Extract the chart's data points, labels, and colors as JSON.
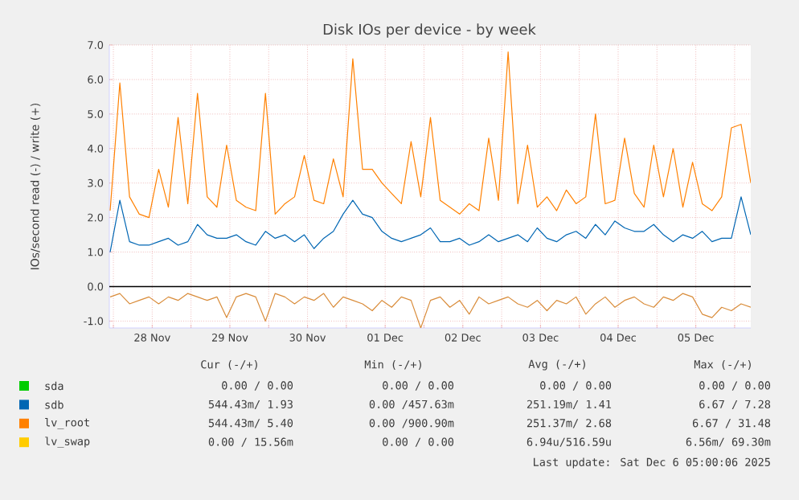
{
  "chart_data": {
    "type": "line",
    "title": "Disk IOs per device - by week",
    "ylabel": "IOs/second read (-) / write (+)",
    "x": [
      "2025-11-27T23:00",
      "2025-11-28T02:00",
      "2025-11-28T05:00",
      "2025-11-28T08:00",
      "2025-11-28T11:00",
      "2025-11-28T14:00",
      "2025-11-28T17:00",
      "2025-11-28T20:00",
      "2025-11-28T23:00",
      "2025-11-29T02:00",
      "2025-11-29T05:00",
      "2025-11-29T08:00",
      "2025-11-29T11:00",
      "2025-11-29T14:00",
      "2025-11-29T17:00",
      "2025-11-29T20:00",
      "2025-11-29T23:00",
      "2025-11-30T02:00",
      "2025-11-30T05:00",
      "2025-11-30T08:00",
      "2025-11-30T11:00",
      "2025-11-30T14:00",
      "2025-11-30T17:00",
      "2025-11-30T20:00",
      "2025-11-30T23:00",
      "2025-12-01T02:00",
      "2025-12-01T05:00",
      "2025-12-01T08:00",
      "2025-12-01T11:00",
      "2025-12-01T14:00",
      "2025-12-01T17:00",
      "2025-12-01T20:00",
      "2025-12-01T23:00",
      "2025-12-02T02:00",
      "2025-12-02T05:00",
      "2025-12-02T08:00",
      "2025-12-02T11:00",
      "2025-12-02T14:00",
      "2025-12-02T17:00",
      "2025-12-02T20:00",
      "2025-12-02T23:00",
      "2025-12-03T02:00",
      "2025-12-03T05:00",
      "2025-12-03T08:00",
      "2025-12-03T11:00",
      "2025-12-03T14:00",
      "2025-12-03T17:00",
      "2025-12-03T20:00",
      "2025-12-03T23:00",
      "2025-12-04T02:00",
      "2025-12-04T05:00",
      "2025-12-04T08:00",
      "2025-12-04T11:00",
      "2025-12-04T14:00",
      "2025-12-04T17:00",
      "2025-12-04T20:00",
      "2025-12-04T23:00",
      "2025-12-05T02:00",
      "2025-12-05T05:00",
      "2025-12-05T08:00",
      "2025-12-05T11:00",
      "2025-12-05T14:00",
      "2025-12-05T17:00",
      "2025-12-05T20:00",
      "2025-12-05T23:00",
      "2025-12-06T02:00",
      "2025-12-06T05:00"
    ],
    "series": [
      {
        "name": "sda",
        "color": "#00cc00",
        "values": [
          null,
          null,
          null,
          null,
          null,
          null,
          null,
          null,
          null,
          null,
          null,
          null,
          null,
          null,
          null,
          null,
          null,
          null,
          null,
          null,
          null,
          null,
          null,
          null,
          null,
          null,
          null,
          null,
          null,
          null,
          null,
          null,
          null,
          null,
          null,
          null,
          null,
          null,
          null,
          null,
          null,
          null,
          null,
          null,
          null,
          null,
          null,
          null,
          null,
          null,
          null,
          null,
          null,
          null,
          null,
          null,
          null,
          null,
          null,
          null,
          null,
          null,
          null,
          null,
          null,
          null,
          null
        ]
      },
      {
        "name": "sdb",
        "color": "#0066b3",
        "values": [
          1.0,
          2.5,
          1.3,
          1.2,
          1.2,
          1.3,
          1.4,
          1.2,
          1.3,
          1.8,
          1.5,
          1.4,
          1.4,
          1.5,
          1.3,
          1.2,
          1.6,
          1.4,
          1.5,
          1.3,
          1.5,
          1.1,
          1.4,
          1.6,
          2.1,
          2.5,
          2.1,
          2.0,
          1.6,
          1.4,
          1.3,
          1.4,
          1.5,
          1.7,
          1.3,
          1.3,
          1.4,
          1.2,
          1.3,
          1.5,
          1.3,
          1.4,
          1.5,
          1.3,
          1.7,
          1.4,
          1.3,
          1.5,
          1.6,
          1.4,
          1.8,
          1.5,
          1.9,
          1.7,
          1.6,
          1.6,
          1.8,
          1.5,
          1.3,
          1.5,
          1.4,
          1.6,
          1.3,
          1.4,
          1.4,
          2.6,
          1.5
        ]
      },
      {
        "name": "lv_root",
        "color": "#ff8000",
        "values": [
          2.2,
          5.9,
          2.6,
          2.1,
          2.0,
          3.4,
          2.3,
          4.9,
          2.4,
          5.6,
          2.6,
          2.3,
          4.1,
          2.5,
          2.3,
          2.2,
          5.6,
          2.1,
          2.4,
          2.6,
          3.8,
          2.5,
          2.4,
          3.7,
          2.6,
          6.6,
          3.4,
          3.4,
          3.0,
          2.7,
          2.4,
          4.2,
          2.6,
          4.9,
          2.5,
          2.3,
          2.1,
          2.4,
          2.2,
          4.3,
          2.5,
          6.8,
          2.4,
          4.1,
          2.3,
          2.6,
          2.2,
          2.8,
          2.4,
          2.6,
          5.0,
          2.4,
          2.5,
          4.3,
          2.7,
          2.3,
          4.1,
          2.6,
          4.0,
          2.3,
          3.6,
          2.4,
          2.2,
          2.6,
          4.6,
          4.7,
          3.0
        ]
      },
      {
        "color": "#d98c3a",
        "values": [
          -0.3,
          -0.2,
          -0.5,
          -0.4,
          -0.3,
          -0.5,
          -0.3,
          -0.4,
          -0.2,
          -0.3,
          -0.4,
          -0.3,
          -0.9,
          -0.3,
          -0.2,
          -0.3,
          -1.0,
          -0.2,
          -0.3,
          -0.5,
          -0.3,
          -0.4,
          -0.2,
          -0.6,
          -0.3,
          -0.4,
          -0.5,
          -0.7,
          -0.4,
          -0.6,
          -0.3,
          -0.4,
          -1.2,
          -0.4,
          -0.3,
          -0.6,
          -0.4,
          -0.8,
          -0.3,
          -0.5,
          -0.4,
          -0.3,
          -0.5,
          -0.6,
          -0.4,
          -0.7,
          -0.4,
          -0.5,
          -0.3,
          -0.8,
          -0.5,
          -0.3,
          -0.6,
          -0.4,
          -0.3,
          -0.5,
          -0.6,
          -0.3,
          -0.4,
          -0.2,
          -0.3,
          -0.8,
          -0.9,
          -0.6,
          -0.7,
          -0.5,
          -0.6
        ]
      },
      {
        "name": "lv_swap",
        "color": "#ffcc00",
        "values": [
          null,
          null,
          null,
          null,
          null,
          null,
          null,
          null,
          null,
          null,
          null,
          null,
          null,
          null,
          null,
          null,
          null,
          null,
          null,
          null,
          null,
          null,
          null,
          null,
          null,
          null,
          null,
          null,
          null,
          null,
          null,
          null,
          null,
          null,
          null,
          null,
          null,
          null,
          null,
          null,
          null,
          null,
          null,
          null,
          null,
          null,
          null,
          null,
          null,
          null,
          null,
          null,
          null,
          null,
          null,
          null,
          null,
          null,
          null,
          null,
          null,
          null,
          null,
          null,
          null,
          null,
          null
        ]
      }
    ],
    "xlim": [
      "2025-11-27T22:45",
      "2025-12-06T05:00"
    ],
    "xticks": [
      {
        "value": "2025-11-28T00:00",
        "label": null
      },
      {
        "value": "2025-11-28T12:00",
        "label": "28 Nov"
      },
      {
        "value": "2025-11-29T00:00",
        "label": null
      },
      {
        "value": "2025-11-29T12:00",
        "label": "29 Nov"
      },
      {
        "value": "2025-11-30T00:00",
        "label": null
      },
      {
        "value": "2025-11-30T12:00",
        "label": "30 Nov"
      },
      {
        "value": "2025-12-01T00:00",
        "label": null
      },
      {
        "value": "2025-12-01T12:00",
        "label": "01 Dec"
      },
      {
        "value": "2025-12-02T00:00",
        "label": null
      },
      {
        "value": "2025-12-02T12:00",
        "label": "02 Dec"
      },
      {
        "value": "2025-12-03T00:00",
        "label": null
      },
      {
        "value": "2025-12-03T12:00",
        "label": "03 Dec"
      },
      {
        "value": "2025-12-04T00:00",
        "label": null
      },
      {
        "value": "2025-12-04T12:00",
        "label": "04 Dec"
      },
      {
        "value": "2025-12-05T00:00",
        "label": null
      },
      {
        "value": "2025-12-05T12:00",
        "label": "05 Dec"
      },
      {
        "value": "2025-12-06T00:00",
        "label": null
      }
    ],
    "ylim": [
      -1.2,
      7.0
    ],
    "yticks": [
      {
        "value": -1,
        "label": "-1.0"
      },
      {
        "value": 0,
        "label": "0.0"
      },
      {
        "value": 1,
        "label": "1.0"
      },
      {
        "value": 2,
        "label": "2.0"
      },
      {
        "value": 3,
        "label": "3.0"
      },
      {
        "value": 4,
        "label": "4.0"
      },
      {
        "value": 5,
        "label": "5.0"
      },
      {
        "value": 6,
        "label": "6.0"
      },
      {
        "value": 7,
        "label": "7.0"
      }
    ],
    "grid": true,
    "legend": "bottom",
    "ref_lines": [
      {
        "axis": "y",
        "value": 0,
        "color": "#000000"
      }
    ],
    "annotations": [
      "Cur (-/+)",
      "Min (-/+)",
      "Avg (-/+)",
      "Max (-/+)",
      "0.00 /  0.00",
      "0.00 /  0.00",
      "0.00 /  0.00",
      "0.00 /  0.00",
      "544.43m/  1.93",
      "0.00 /457.63m",
      "251.19m/  1.41",
      "6.67 /  7.28",
      "544.43m/  5.40",
      "0.00 /900.90m",
      "251.37m/  2.68",
      "6.67 / 31.48",
      "0.00 / 15.56m",
      "0.00 /  0.00",
      "6.94u/516.59u",
      "6.56m/ 69.30m",
      "Last update: Sat Dec  6 05:00:06 2025"
    ]
  }
}
